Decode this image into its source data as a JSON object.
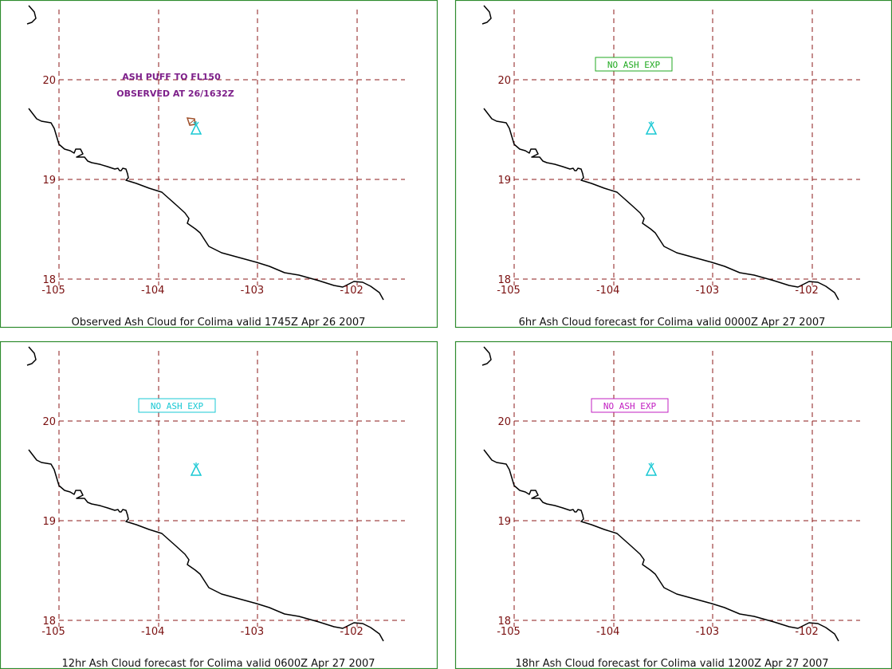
{
  "panels": [
    {
      "caption": "Observed Ash Cloud for Colima valid 1745Z Apr 26 2007",
      "remarks": [
        "ASH PUFF TO FL150",
        "OBSERVED AT 26/1632Z"
      ],
      "status_label": "",
      "status_color": "",
      "ash_cloud_observed": true
    },
    {
      "caption": "6hr Ash Cloud forecast for Colima valid 0000Z Apr 27 2007",
      "remarks": [],
      "status_label": "NO ASH EXP",
      "status_color": "#22aa22",
      "ash_cloud_observed": false
    },
    {
      "caption": "12hr Ash Cloud forecast for Colima valid 0600Z Apr 27 2007",
      "remarks": [],
      "status_label": "NO ASH EXP",
      "status_color": "#19c8d4",
      "ash_cloud_observed": false
    },
    {
      "caption": "18hr Ash Cloud forecast for Colima valid 1200Z Apr 27 2007",
      "remarks": [],
      "status_label": "NO ASH EXP",
      "status_color": "#c21fc2",
      "ash_cloud_observed": false
    }
  ],
  "map": {
    "lon_ticks": [
      "-105",
      "-104",
      "-103",
      "-102"
    ],
    "lat_ticks": [
      "20",
      "19",
      "18"
    ],
    "lon_values": [
      -105,
      -104,
      -103,
      -102
    ],
    "lat_values": [
      20,
      19,
      18
    ],
    "volcano_symbol": "volcano-icon",
    "volcano_color": "#19c8d4",
    "grid_color": "#8b1a1a",
    "coastline_color": "#000000",
    "frame_color": "#2e8b2e"
  }
}
